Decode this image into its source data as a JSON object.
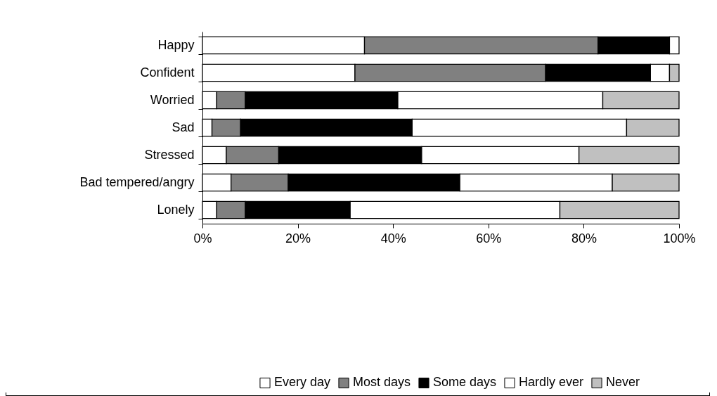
{
  "chart_data": {
    "type": "bar",
    "orientation": "horizontal",
    "stacked": true,
    "categories": [
      "Happy",
      "Confident",
      "Worried",
      "Sad",
      "Stressed",
      "Bad tempered/angry",
      "Lonely"
    ],
    "series": [
      {
        "name": "Every day",
        "color": "#ffffff",
        "values": [
          34,
          32,
          3,
          2,
          5,
          6,
          3
        ]
      },
      {
        "name": "Most days",
        "color": "#808080",
        "values": [
          49,
          40,
          6,
          6,
          11,
          12,
          6
        ]
      },
      {
        "name": "Some days",
        "color": "#000000",
        "values": [
          15,
          22,
          32,
          36,
          30,
          36,
          22
        ]
      },
      {
        "name": "Hardly ever",
        "color": "#ffffff",
        "values": [
          2,
          4,
          43,
          45,
          33,
          32,
          44
        ]
      },
      {
        "name": "Never",
        "color": "#c0c0c0",
        "values": [
          null,
          2,
          16,
          11,
          21,
          14,
          25
        ]
      }
    ],
    "xlim": [
      0,
      100
    ],
    "xticks": [
      {
        "value": 0,
        "label": "0%"
      },
      {
        "value": 20,
        "label": "20%"
      },
      {
        "value": 40,
        "label": "40%"
      },
      {
        "value": 60,
        "label": "60%"
      },
      {
        "value": 80,
        "label": "80%"
      },
      {
        "value": 100,
        "label": "100%"
      }
    ],
    "grid": false,
    "legend": "bottom"
  }
}
